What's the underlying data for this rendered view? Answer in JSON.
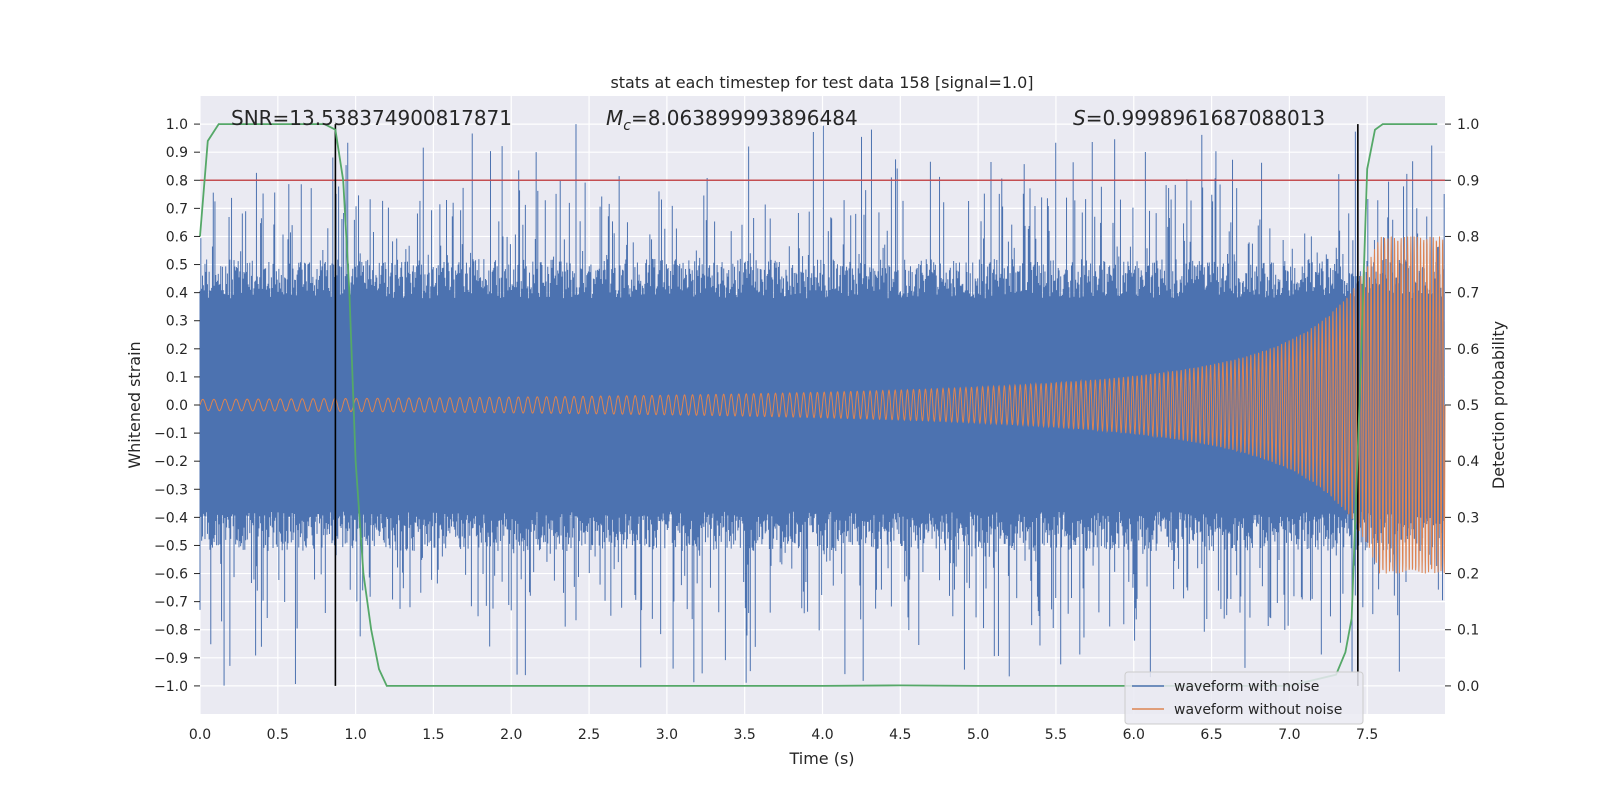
{
  "chart_data": {
    "type": "line",
    "title": "stats at each timestep for test data 158 [signal=1.0]",
    "xlabel": "Time (s)",
    "ylabel": "Whitened strain",
    "ylabel_right": "Detection probability",
    "xlim": [
      0.0,
      8.0
    ],
    "ylim": [
      -1.1,
      1.1
    ],
    "ylim_right": [
      -0.05,
      1.05
    ],
    "xticks": [
      "0.0",
      "0.5",
      "1.0",
      "1.5",
      "2.0",
      "2.5",
      "3.0",
      "3.5",
      "4.0",
      "4.5",
      "5.0",
      "5.5",
      "6.0",
      "6.5",
      "7.0",
      "7.5"
    ],
    "xtick_values": [
      0.0,
      0.5,
      1.0,
      1.5,
      2.0,
      2.5,
      3.0,
      3.5,
      4.0,
      4.5,
      5.0,
      5.5,
      6.0,
      6.5,
      7.0,
      7.5
    ],
    "yticks": [
      "1.0",
      "0.9",
      "0.8",
      "0.7",
      "0.6",
      "0.5",
      "0.4",
      "0.3",
      "0.2",
      "0.1",
      "0.0",
      "−0.1",
      "−0.2",
      "−0.3",
      "−0.4",
      "−0.5",
      "−0.6",
      "−0.7",
      "−0.8",
      "−0.9",
      "−1.0"
    ],
    "ytick_values": [
      1.0,
      0.9,
      0.8,
      0.7,
      0.6,
      0.5,
      0.4,
      0.3,
      0.2,
      0.1,
      0.0,
      -0.1,
      -0.2,
      -0.3,
      -0.4,
      -0.5,
      -0.6,
      -0.7,
      -0.8,
      -0.9,
      -1.0
    ],
    "yticks_right": [
      "1.0",
      "0.9",
      "0.8",
      "0.7",
      "0.6",
      "0.5",
      "0.4",
      "0.3",
      "0.2",
      "0.1",
      "0.0"
    ],
    "ytick_right_values": [
      1.0,
      0.9,
      0.8,
      0.7,
      0.6,
      0.5,
      0.4,
      0.3,
      0.2,
      0.1,
      0.0
    ],
    "annotations": {
      "snr": "SNR=13.538374900817871",
      "mc_symbol": "M",
      "mc_sub": "c",
      "mc_value": "=8.063899993896484",
      "s_symbol": "S",
      "s_value": "=0.9998961687088013"
    },
    "threshold": {
      "value": 0.9,
      "axis": "right",
      "color": "#c44e52"
    },
    "vlines": [
      0.87,
      7.44
    ],
    "series": [
      {
        "name": "waveform with noise",
        "color": "#4c72b0",
        "envelope": "noise band approx ±0.4, spikes to ±1.0"
      },
      {
        "name": "waveform without noise",
        "color": "#dd8452",
        "chirp_amplitude_start": 0.02,
        "chirp_amplitude_end": 0.6
      },
      {
        "name": "detection probability",
        "color": "#55a868",
        "axis": "right",
        "x": [
          0.0,
          0.05,
          0.12,
          0.2,
          0.4,
          0.6,
          0.8,
          0.87,
          0.92,
          0.96,
          1.0,
          1.05,
          1.1,
          1.15,
          1.2,
          2.0,
          3.0,
          4.0,
          4.5,
          5.0,
          6.0,
          7.0,
          7.3,
          7.36,
          7.4,
          7.45,
          7.5,
          7.55,
          7.6,
          7.7,
          7.8,
          7.95
        ],
        "values": [
          0.8,
          0.97,
          1.0,
          1.0,
          1.0,
          1.0,
          1.0,
          0.99,
          0.9,
          0.7,
          0.4,
          0.2,
          0.1,
          0.03,
          0.0,
          0.0,
          0.0,
          0.0,
          0.001,
          0.0,
          0.0,
          0.0,
          0.02,
          0.06,
          0.12,
          0.5,
          0.92,
          0.99,
          1.0,
          1.0,
          1.0,
          1.0
        ]
      }
    ],
    "legend": [
      "waveform with noise",
      "waveform without noise"
    ],
    "legend_loc": "lower-right"
  }
}
